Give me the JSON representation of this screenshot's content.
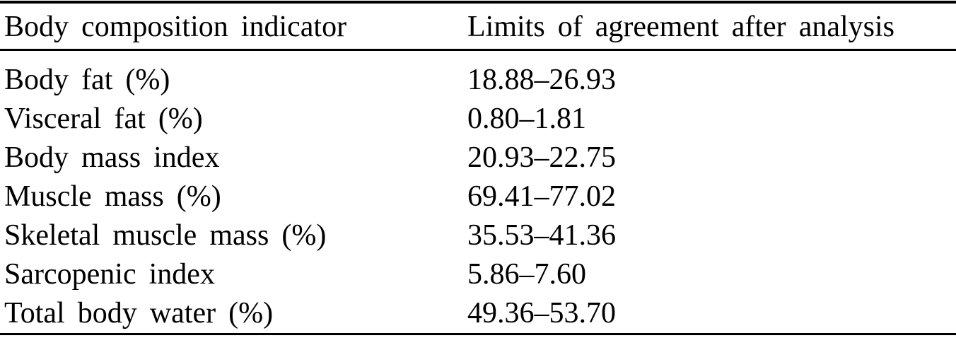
{
  "page": {
    "background_color": "#ffffff",
    "text_color": "#000000",
    "rule_color": "#000000"
  },
  "table": {
    "header": {
      "col1": "Body composition indicator",
      "col2": "Limits of agreement after analysis"
    },
    "rows": [
      {
        "indicator": "Body fat (%)",
        "limits": "18.88–26.93"
      },
      {
        "indicator": "Visceral fat (%)",
        "limits": "0.80–1.81"
      },
      {
        "indicator": "Body mass index",
        "limits": "20.93–22.75"
      },
      {
        "indicator": "Muscle mass (%)",
        "limits": "69.41–77.02"
      },
      {
        "indicator": "Skeletal muscle mass (%)",
        "limits": "35.53–41.36"
      },
      {
        "indicator": "Sarcopenic index",
        "limits": "5.86–7.60"
      },
      {
        "indicator": "Total body water (%)",
        "limits": "49.36–53.70"
      }
    ]
  }
}
